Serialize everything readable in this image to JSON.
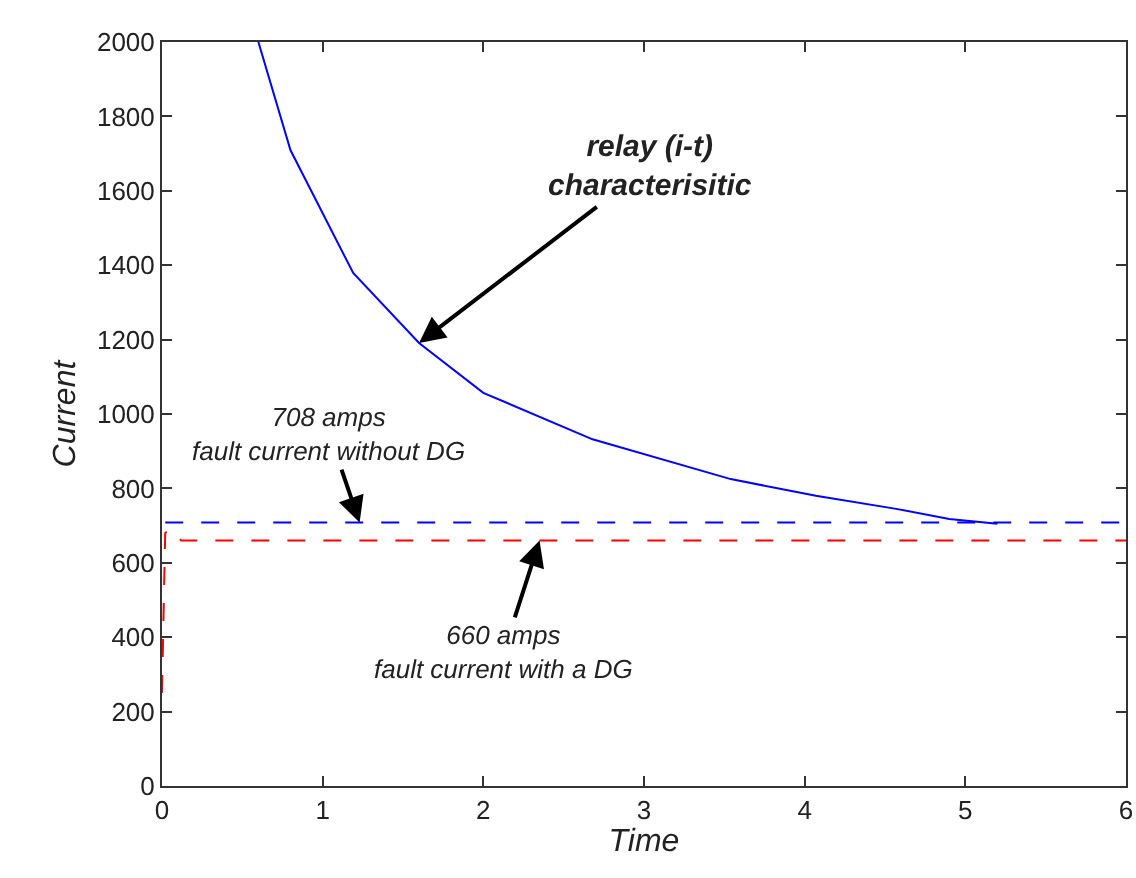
{
  "chart_data": {
    "type": "line",
    "xlabel": "Time",
    "ylabel": "Current",
    "xlim": [
      0,
      6
    ],
    "ylim": [
      0,
      2000
    ],
    "xticks": [
      0,
      1,
      2,
      3,
      4,
      5,
      6
    ],
    "yticks": [
      0,
      200,
      400,
      600,
      800,
      1000,
      1200,
      1400,
      1600,
      1800,
      2000
    ],
    "grid": false,
    "marker": "none",
    "series": [
      {
        "color": "#0000ff",
        "line_style": "solid",
        "x": [
          0.6,
          0.8,
          1.19,
          1.6,
          2.0,
          2.68,
          3.54,
          4.07,
          4.57,
          4.9,
          5.2
        ],
        "values": [
          2000,
          1709,
          1379,
          1191,
          1057,
          932,
          825,
          780,
          745,
          718,
          705
        ]
      },
      {
        "color": "#0000ff",
        "line_style": "dashed",
        "x": [
          0.02,
          6
        ],
        "values": [
          708,
          708
        ]
      },
      {
        "color": "#ff0000",
        "line_style": "dashed",
        "x": [
          0,
          0.02,
          0.05,
          0.12,
          6
        ],
        "values": [
          250,
          680,
          690,
          660,
          660
        ]
      }
    ],
    "annotations": [
      {
        "text": "relay (i-t)\ncharacterisitic",
        "x": 1.6,
        "y": 1191
      },
      {
        "text": "708 amps\nfault current without DG",
        "x": 1.23,
        "y": 708
      },
      {
        "text": "660 amps\nfault current with a DG",
        "x": 2.35,
        "y": 660
      }
    ]
  }
}
